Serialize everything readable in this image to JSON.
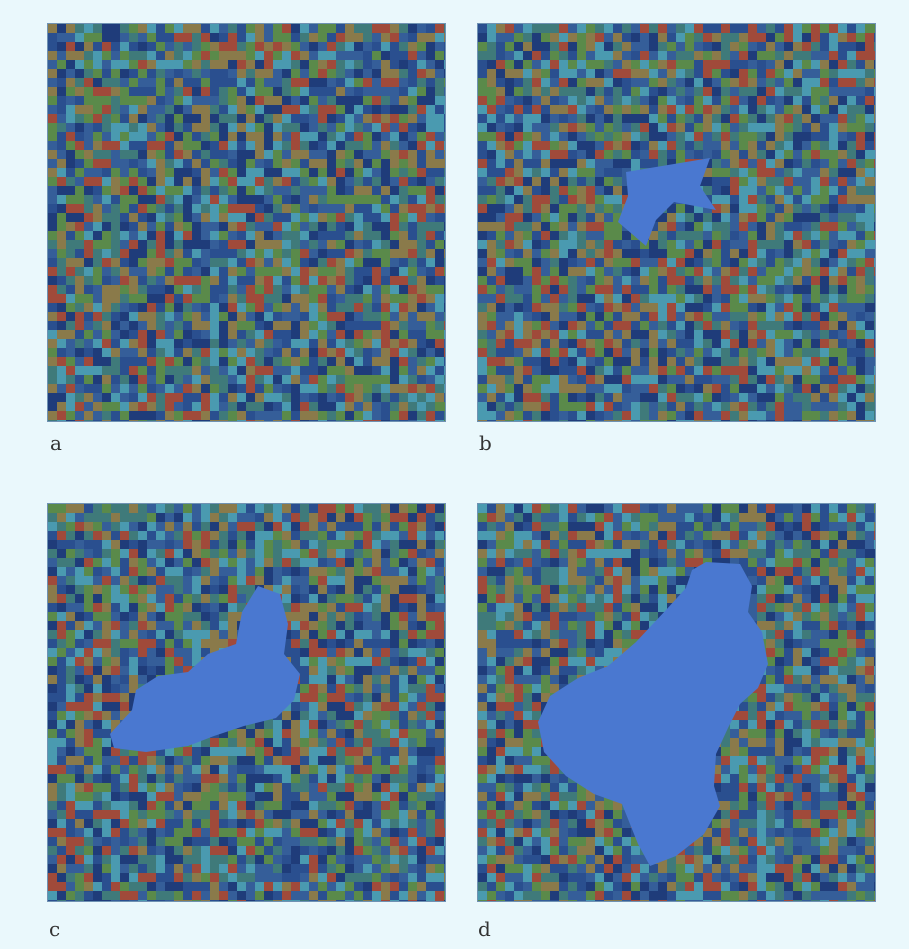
{
  "colors": {
    "background": "#eaf8fc",
    "cell_palette": [
      "#2a4f8f",
      "#1f3c7a",
      "#3f7a7a",
      "#5a8a4a",
      "#a04a3a",
      "#8a7a4a",
      "#4a9ab0",
      "#355e99"
    ],
    "cluster": "#4a78d0"
  },
  "panels": [
    {
      "label": "a",
      "cluster": "none"
    },
    {
      "label": "b",
      "cluster": "small"
    },
    {
      "label": "c",
      "cluster": "medium"
    },
    {
      "label": "d",
      "cluster": "large"
    }
  ]
}
